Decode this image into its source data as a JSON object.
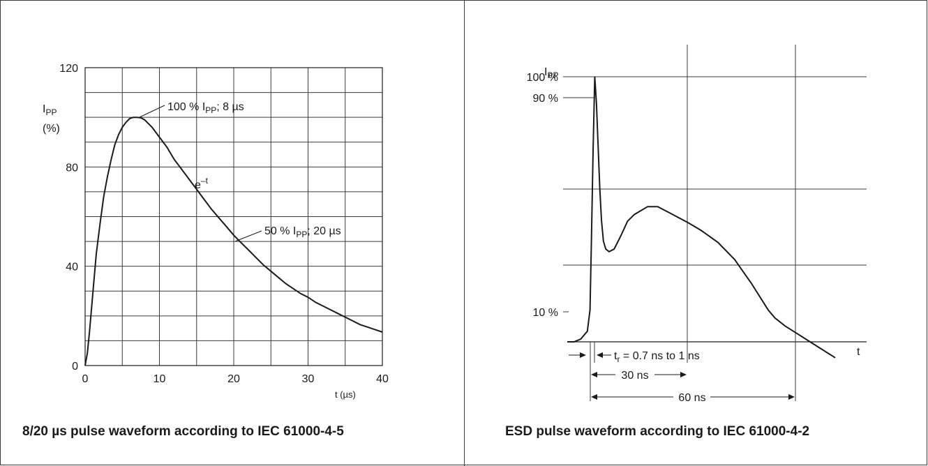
{
  "chart_data": [
    {
      "type": "line",
      "caption": "8/20 µs pulse waveform according to IEC 61000-4-5",
      "ylabel": "IPP",
      "ylabel_unit": "(%)",
      "xlabel": "t (µs)",
      "xlim": [
        0,
        40
      ],
      "ylim": [
        0,
        120
      ],
      "x_ticks": [
        "0",
        "10",
        "20",
        "30",
        "40"
      ],
      "y_ticks": [
        "0",
        "40",
        "80",
        "120"
      ],
      "grid": true,
      "series": [
        {
          "x": [
            0,
            0.3,
            0.6,
            1,
            1.5,
            2,
            2.5,
            3,
            3.5,
            4,
            4.5,
            5,
            5.5,
            6,
            6.5,
            7,
            7.5,
            8,
            9,
            10,
            11,
            12,
            13,
            14,
            15,
            16,
            17,
            18,
            19,
            20,
            21,
            22,
            23,
            24,
            25,
            26,
            27,
            28,
            29,
            30,
            31,
            32,
            33,
            34,
            35,
            36,
            37,
            38,
            39,
            40
          ],
          "y": [
            0,
            5,
            14,
            28,
            45,
            57,
            68,
            76,
            83,
            89,
            93,
            96,
            98,
            99.5,
            100,
            100,
            99.8,
            99,
            96,
            92,
            88,
            83,
            79,
            75,
            71,
            67,
            63,
            59.5,
            56,
            52.5,
            49.5,
            46.5,
            43.5,
            40.5,
            38,
            35.5,
            33,
            31,
            29,
            27.5,
            25.5,
            24,
            22.5,
            21,
            19.5,
            18,
            16.5,
            15.5,
            14.5,
            13.5
          ]
        }
      ],
      "annotations": [
        {
          "main": "100 % I",
          "sub": "PP",
          "tail": "; 8 µs"
        },
        {
          "main": "e",
          "sup": "–t"
        },
        {
          "main": "50 % I",
          "sub": "PP",
          "tail": "; 20 µs"
        }
      ]
    },
    {
      "type": "line",
      "caption": "ESD pulse waveform according to IEC 61000-4-2",
      "ylabel": "I",
      "ylabel_sub": "PP",
      "xlabel": "t",
      "y_ticks": [
        "100 %",
        "90 %",
        "10 %"
      ],
      "grid": true,
      "series": [
        {
          "x": [
            0,
            2,
            4,
            6,
            6.8,
            7.2,
            7.7,
            8.2,
            8.7,
            9.2,
            9.7,
            10.2,
            10.8,
            11.5,
            12.5,
            14,
            16,
            18,
            20,
            22,
            24,
            27,
            30,
            33,
            36,
            40,
            45,
            50,
            55,
            58,
            60,
            62,
            65,
            70,
            75,
            80
          ],
          "y": [
            0,
            0,
            1,
            4,
            12,
            38,
            72,
            100,
            90,
            74,
            58,
            46,
            38,
            35,
            34,
            35,
            40,
            45.5,
            48,
            49.5,
            51,
            51,
            49,
            47,
            45,
            42,
            37.5,
            31,
            22,
            16,
            12,
            9,
            6,
            2,
            -2,
            -6
          ]
        }
      ],
      "annotations": [
        {
          "main": "t",
          "sub": "r",
          "tail": " = 0.7 ns to 1 ns"
        },
        {
          "main": "30 ns"
        },
        {
          "main": "60 ns"
        }
      ]
    }
  ]
}
